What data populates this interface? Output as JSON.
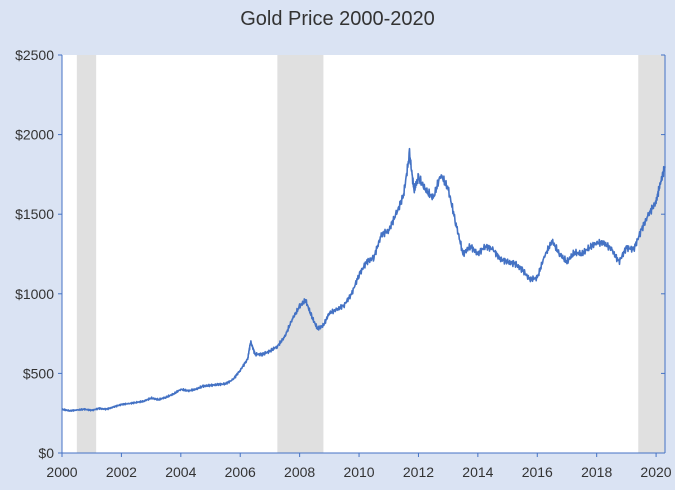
{
  "chart_data": {
    "type": "line",
    "title": "Gold Price 2000-2020",
    "xlabel": "",
    "ylabel": "",
    "xlim": [
      2000,
      2020.3
    ],
    "ylim": [
      0,
      2500
    ],
    "x_ticks": [
      2000,
      2002,
      2004,
      2006,
      2008,
      2010,
      2012,
      2014,
      2016,
      2018,
      2020
    ],
    "x_tick_labels": [
      "2000",
      "2002",
      "2004",
      "2006",
      "2008",
      "2010",
      "2012",
      "2014",
      "2016",
      "2018",
      "2020"
    ],
    "y_ticks": [
      0,
      500,
      1000,
      1500,
      2000,
      2500
    ],
    "y_tick_labels": [
      "$0",
      "$500",
      "$1000",
      "$1500",
      "$2000",
      "$2500"
    ],
    "grid": false,
    "legend": "none",
    "line_color": "#4472c4",
    "shade_color": "#e0e0e0",
    "shaded_periods": [
      {
        "start": 2000.5,
        "end": 2001.15
      },
      {
        "start": 2007.25,
        "end": 2008.8
      },
      {
        "start": 2019.4,
        "end": 2020.3
      }
    ],
    "series": [
      {
        "x": [
          2000.0,
          2000.25,
          2000.5,
          2000.75,
          2001.0,
          2001.25,
          2001.5,
          2001.75,
          2002.0,
          2002.25,
          2002.5,
          2002.75,
          2003.0,
          2003.25,
          2003.5,
          2003.75,
          2004.0,
          2004.25,
          2004.5,
          2004.75,
          2005.0,
          2005.25,
          2005.5,
          2005.75,
          2006.0,
          2006.25,
          2006.35,
          2006.5,
          2006.75,
          2007.0,
          2007.25,
          2007.5,
          2007.75,
          2008.0,
          2008.2,
          2008.4,
          2008.6,
          2008.8,
          2009.0,
          2009.25,
          2009.5,
          2009.75,
          2010.0,
          2010.25,
          2010.5,
          2010.75,
          2011.0,
          2011.25,
          2011.5,
          2011.7,
          2011.85,
          2012.0,
          2012.25,
          2012.5,
          2012.75,
          2013.0,
          2013.25,
          2013.5,
          2013.75,
          2014.0,
          2014.25,
          2014.5,
          2014.75,
          2015.0,
          2015.25,
          2015.5,
          2015.75,
          2016.0,
          2016.25,
          2016.5,
          2016.75,
          2017.0,
          2017.25,
          2017.5,
          2017.75,
          2018.0,
          2018.25,
          2018.5,
          2018.75,
          2019.0,
          2019.25,
          2019.5,
          2019.75,
          2020.0,
          2020.15,
          2020.3
        ],
        "y": [
          275,
          265,
          270,
          275,
          268,
          280,
          275,
          290,
          305,
          310,
          318,
          325,
          345,
          335,
          350,
          370,
          400,
          390,
          400,
          420,
          425,
          430,
          435,
          460,
          520,
          590,
          700,
          620,
          620,
          640,
          670,
          730,
          840,
          920,
          960,
          860,
          780,
          800,
          880,
          900,
          930,
          1000,
          1120,
          1200,
          1230,
          1370,
          1400,
          1500,
          1620,
          1880,
          1650,
          1730,
          1650,
          1600,
          1750,
          1660,
          1450,
          1250,
          1300,
          1250,
          1300,
          1280,
          1220,
          1200,
          1190,
          1150,
          1090,
          1100,
          1240,
          1330,
          1250,
          1200,
          1260,
          1250,
          1290,
          1320,
          1320,
          1280,
          1200,
          1290,
          1280,
          1400,
          1500,
          1580,
          1700,
          1800
        ]
      }
    ]
  }
}
